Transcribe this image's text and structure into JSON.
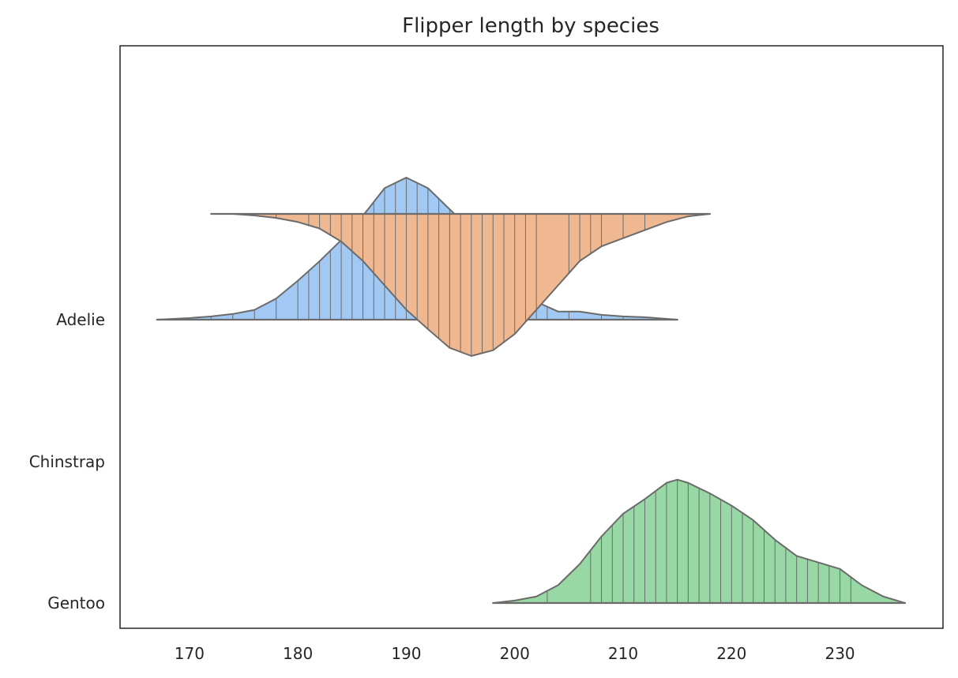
{
  "chart_data": {
    "type": "violin",
    "title": "Flipper length by species",
    "xlabel": "",
    "ylabel": "",
    "xlim": [
      163.6,
      239.5
    ],
    "x_ticks": [
      170,
      180,
      190,
      200,
      210,
      220,
      230
    ],
    "categories": [
      "Adelie",
      "Chinstrap",
      "Gentoo"
    ],
    "orientation": "horizontal",
    "inner": "stick",
    "grid": false,
    "series": [
      {
        "category": "Adelie",
        "color": "#a1c9f4",
        "range": [
          167,
          215
        ],
        "density": [
          [
            167,
            0.0
          ],
          [
            170,
            0.02
          ],
          [
            172,
            0.04
          ],
          [
            174,
            0.07
          ],
          [
            176,
            0.12
          ],
          [
            178,
            0.26
          ],
          [
            180,
            0.48
          ],
          [
            182,
            0.72
          ],
          [
            184,
            0.98
          ],
          [
            186,
            1.28
          ],
          [
            188,
            1.62
          ],
          [
            190,
            1.75
          ],
          [
            192,
            1.62
          ],
          [
            194,
            1.36
          ],
          [
            196,
            1.1
          ],
          [
            198,
            0.82
          ],
          [
            200,
            0.5
          ],
          [
            202,
            0.22
          ],
          [
            204,
            0.1
          ],
          [
            206,
            0.1
          ],
          [
            208,
            0.06
          ],
          [
            210,
            0.04
          ],
          [
            212,
            0.03
          ],
          [
            215,
            0.0
          ]
        ],
        "sticks": [
          172,
          174,
          176,
          178,
          180,
          181,
          182,
          183,
          184,
          185,
          186,
          187,
          188,
          189,
          190,
          191,
          192,
          193,
          194,
          195,
          196,
          197,
          198,
          199,
          200,
          201,
          202,
          203,
          205,
          208,
          210
        ]
      },
      {
        "category": "Chinstrap",
        "color": "#f0b890",
        "range": [
          172,
          218
        ],
        "density": [
          [
            172,
            0.0
          ],
          [
            174,
            0.0
          ],
          [
            176,
            0.02
          ],
          [
            178,
            0.05
          ],
          [
            180,
            0.1
          ],
          [
            182,
            0.18
          ],
          [
            184,
            0.34
          ],
          [
            186,
            0.58
          ],
          [
            188,
            0.88
          ],
          [
            190,
            1.18
          ],
          [
            192,
            1.42
          ],
          [
            194,
            1.65
          ],
          [
            196,
            1.75
          ],
          [
            198,
            1.68
          ],
          [
            200,
            1.48
          ],
          [
            202,
            1.18
          ],
          [
            204,
            0.88
          ],
          [
            206,
            0.58
          ],
          [
            208,
            0.4
          ],
          [
            210,
            0.3
          ],
          [
            212,
            0.2
          ],
          [
            214,
            0.1
          ],
          [
            216,
            0.03
          ],
          [
            218,
            0.0
          ]
        ],
        "sticks": [
          178,
          181,
          182,
          183,
          184,
          185,
          186,
          187,
          188,
          189,
          190,
          191,
          192,
          193,
          194,
          195,
          196,
          197,
          198,
          199,
          200,
          201,
          202,
          205,
          206,
          207,
          208,
          210,
          212
        ]
      },
      {
        "category": "Gentoo",
        "color": "#98d8a5",
        "range": [
          198,
          236
        ],
        "density": [
          [
            198,
            0.0
          ],
          [
            200,
            0.03
          ],
          [
            202,
            0.08
          ],
          [
            204,
            0.22
          ],
          [
            206,
            0.48
          ],
          [
            208,
            0.82
          ],
          [
            210,
            1.1
          ],
          [
            212,
            1.28
          ],
          [
            214,
            1.48
          ],
          [
            215,
            1.52
          ],
          [
            216,
            1.48
          ],
          [
            218,
            1.35
          ],
          [
            220,
            1.2
          ],
          [
            222,
            1.02
          ],
          [
            224,
            0.78
          ],
          [
            226,
            0.58
          ],
          [
            228,
            0.5
          ],
          [
            230,
            0.42
          ],
          [
            232,
            0.22
          ],
          [
            234,
            0.08
          ],
          [
            236,
            0.0
          ]
        ],
        "sticks": [
          203,
          207,
          208,
          209,
          210,
          211,
          212,
          213,
          214,
          215,
          216,
          217,
          218,
          219,
          220,
          221,
          222,
          223,
          224,
          225,
          226,
          227,
          228,
          229,
          230,
          231
        ]
      }
    ]
  }
}
